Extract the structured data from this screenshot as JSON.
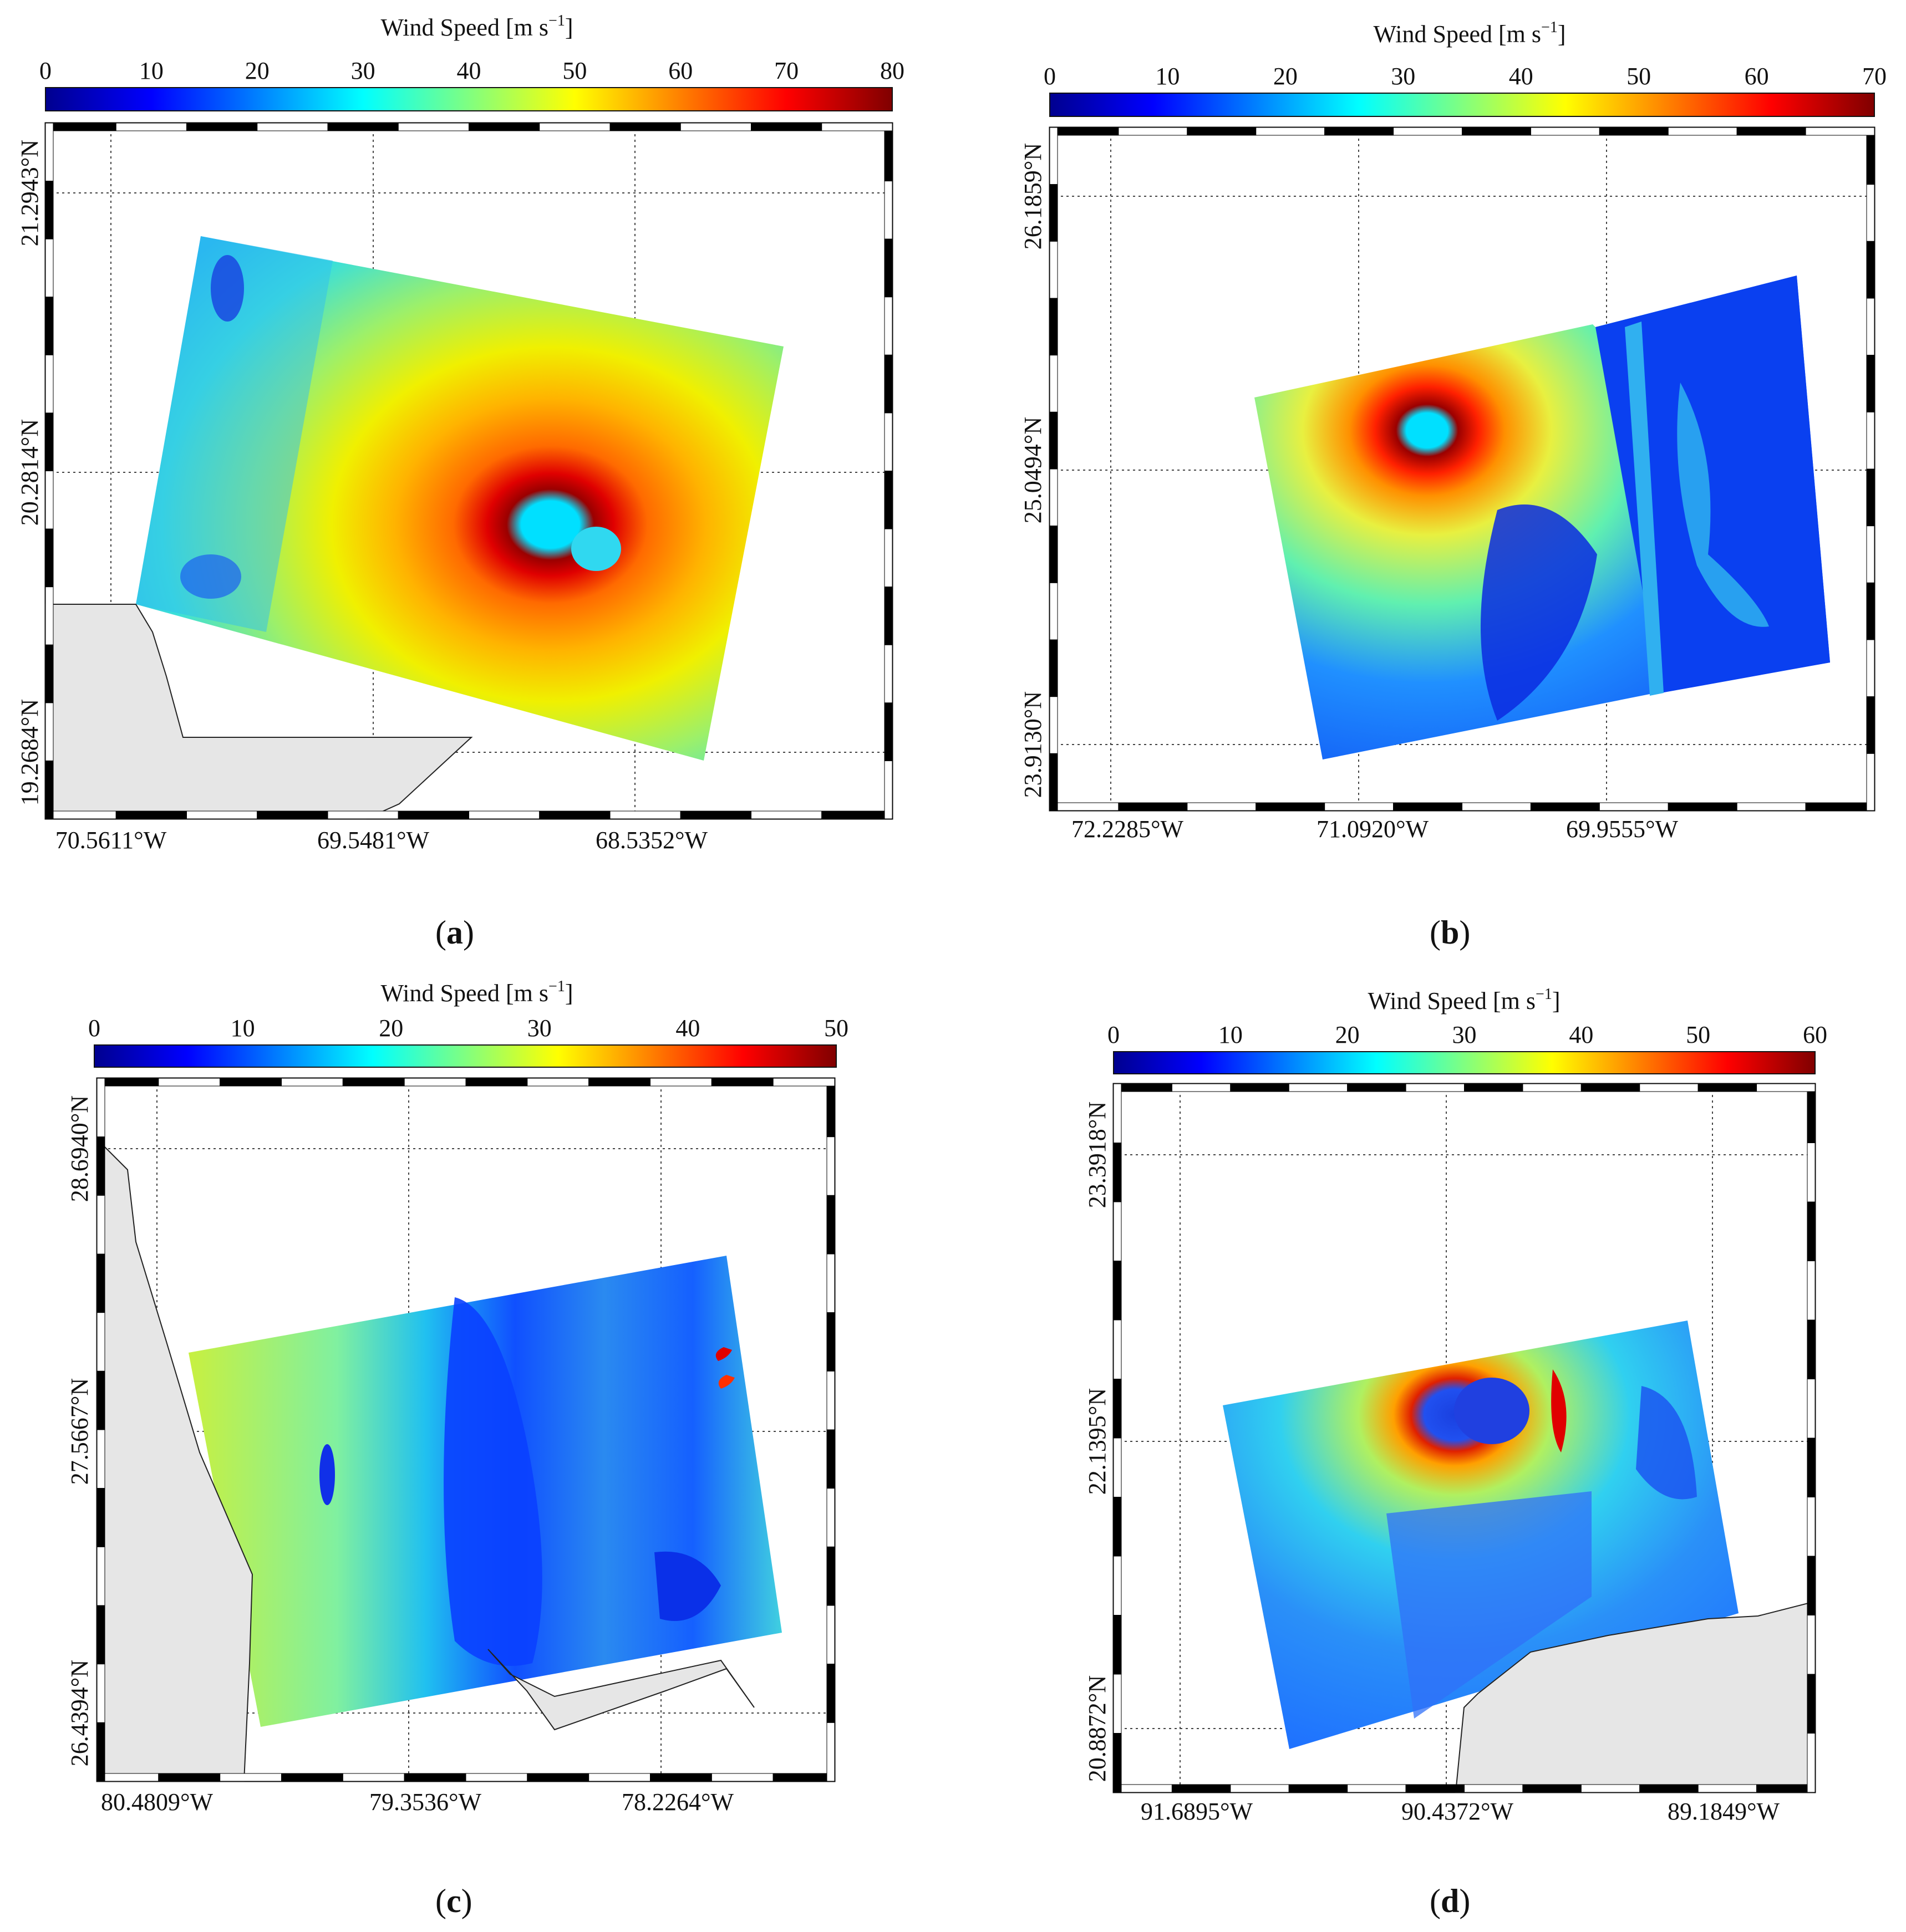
{
  "figure": {
    "colormap": [
      "#00008f",
      "#0000ff",
      "#0080ff",
      "#00ffff",
      "#80ff80",
      "#ffff00",
      "#ff8000",
      "#ff0000",
      "#800000"
    ],
    "land_color": "#e6e6e6",
    "panels": [
      {
        "label_open": "(",
        "label_letter": "a",
        "label_close": ")",
        "colorbar_title": "Wind Speed [m s",
        "colorbar_sup": "−1",
        "colorbar_close": "]",
        "colorbar_ticks": [
          "0",
          "10",
          "20",
          "30",
          "40",
          "50",
          "60",
          "70",
          "80"
        ],
        "lat_labels": [
          "21.2943°N",
          "20.2814°N",
          "19.2684°N"
        ],
        "lon_labels": [
          "70.5611°W",
          "69.5481°W",
          "68.5352°W"
        ]
      },
      {
        "label_open": "(",
        "label_letter": "b",
        "label_close": ")",
        "colorbar_title": "Wind Speed [m s",
        "colorbar_sup": "−1",
        "colorbar_close": "]",
        "colorbar_ticks": [
          "0",
          "10",
          "20",
          "30",
          "40",
          "50",
          "60",
          "70"
        ],
        "lat_labels": [
          "26.1859°N",
          "25.0494°N",
          "23.9130°N"
        ],
        "lon_labels": [
          "72.2285°W",
          "71.0920°W",
          "69.9555°W"
        ]
      },
      {
        "label_open": "(",
        "label_letter": "c",
        "label_close": ")",
        "colorbar_title": "Wind Speed [m s",
        "colorbar_sup": "−1",
        "colorbar_close": "]",
        "colorbar_ticks": [
          "0",
          "10",
          "20",
          "30",
          "40",
          "50"
        ],
        "lat_labels": [
          "28.6940°N",
          "27.5667°N",
          "26.4394°N"
        ],
        "lon_labels": [
          "80.4809°W",
          "79.3536°W",
          "78.2264°W"
        ]
      },
      {
        "label_open": "(",
        "label_letter": "d",
        "label_close": ")",
        "colorbar_title": "Wind Speed [m s",
        "colorbar_sup": "−1",
        "colorbar_close": "]",
        "colorbar_ticks": [
          "0",
          "10",
          "20",
          "30",
          "40",
          "50",
          "60"
        ],
        "lat_labels": [
          "23.3918°N",
          "22.1395°N",
          "20.8872°N"
        ],
        "lon_labels": [
          "91.6895°W",
          "90.4372°W",
          "89.1849°W"
        ]
      }
    ]
  }
}
